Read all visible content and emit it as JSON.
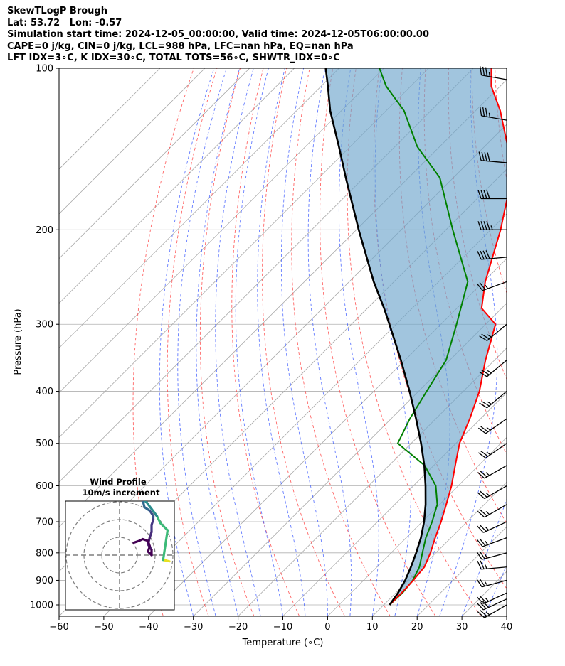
{
  "header": {
    "line1": "SkewTLogP Brough",
    "line2": "Lat: 53.72   Lon: -0.57",
    "line3": "Simulation start time: 2024-12-05_00:00:00, Valid time: 2024-12-05T06:00:00.00",
    "line4": "CAPE=0 j/kg, CIN=0 j/kg, LCL=988 hPa, LFC=nan hPa, EQ=nan hPa",
    "line5": "LFT IDX=3∘C, K IDX=30∘C, TOTAL TOTS=56∘C, SHWTR_IDX=0∘C"
  },
  "chart_data": {
    "type": "skewt-logp",
    "xlabel": "Temperature (∘C)",
    "ylabel": "Pressure (hPa)",
    "xlim": [
      -60,
      40
    ],
    "ylim": [
      1050,
      100
    ],
    "x_ticks": [
      -60,
      -50,
      -40,
      -30,
      -20,
      -10,
      0,
      10,
      20,
      30,
      40
    ],
    "x_tick_labels": [
      "−60",
      "−50",
      "−40",
      "−30",
      "−20",
      "−10",
      "0",
      "10",
      "20",
      "30",
      "40"
    ],
    "y_ticks": [
      1000,
      900,
      800,
      700,
      600,
      500,
      400,
      300,
      200,
      100
    ],
    "y_tick_labels": [
      "1000",
      "900",
      "800",
      "700",
      "600",
      "500",
      "400",
      "300",
      "200",
      "100"
    ],
    "y_scale": "log",
    "grid": true,
    "colors": {
      "temperature": "#ff0000",
      "dewpoint": "#008000",
      "parcel": "#000000",
      "cape_fill": "#6fa6cc",
      "dry_adiabat": "#ff0000",
      "moist_adiabat": "#0000ff",
      "mixing_ratio": "#808080",
      "wind_barb": "#000000"
    },
    "series": [
      {
        "name": "",
        "role": "temperature",
        "points": [
          [
            11.3,
            1000
          ],
          [
            11.3,
            950
          ],
          [
            11.1,
            900
          ],
          [
            10.6,
            850
          ],
          [
            8.8,
            800
          ],
          [
            6.5,
            750
          ],
          [
            4.2,
            700
          ],
          [
            1.5,
            650
          ],
          [
            -1.5,
            600
          ],
          [
            -5.2,
            550
          ],
          [
            -9.2,
            500
          ],
          [
            -12.4,
            450
          ],
          [
            -16.4,
            400
          ],
          [
            -22.0,
            350
          ],
          [
            -27.8,
            300
          ],
          [
            -34.5,
            280
          ],
          [
            -39.6,
            250
          ],
          [
            -47.8,
            200
          ],
          [
            -57.0,
            160
          ],
          [
            -64.8,
            140
          ],
          [
            -74.5,
            120
          ],
          [
            -82.0,
            108
          ],
          [
            -86.0,
            100
          ]
        ]
      },
      {
        "name": "",
        "role": "dewpoint",
        "points": [
          [
            11.3,
            1000
          ],
          [
            11.5,
            950
          ],
          [
            11.0,
            900
          ],
          [
            9.5,
            850
          ],
          [
            7.0,
            800
          ],
          [
            4.4,
            750
          ],
          [
            2.2,
            700
          ],
          [
            -0.5,
            650
          ],
          [
            -5.0,
            600
          ],
          [
            -12.0,
            550
          ],
          [
            -23.0,
            500
          ],
          [
            -25.8,
            450
          ],
          [
            -28.2,
            400
          ],
          [
            -30.8,
            350
          ],
          [
            -36.5,
            300
          ],
          [
            -43.5,
            250
          ],
          [
            -58.5,
            200
          ],
          [
            -73.0,
            160
          ],
          [
            -85.0,
            140
          ],
          [
            -96.0,
            120
          ],
          [
            -105.5,
            108
          ],
          [
            -111.0,
            100
          ]
        ]
      },
      {
        "name": "",
        "role": "parcel",
        "points": [
          [
            11.3,
            1000
          ],
          [
            10.5,
            950
          ],
          [
            9.3,
            900
          ],
          [
            7.6,
            850
          ],
          [
            5.6,
            800
          ],
          [
            3.3,
            750
          ],
          [
            0.4,
            700
          ],
          [
            -3.1,
            650
          ],
          [
            -7.3,
            600
          ],
          [
            -12.1,
            550
          ],
          [
            -17.8,
            500
          ],
          [
            -24.4,
            450
          ],
          [
            -32.0,
            400
          ],
          [
            -40.9,
            350
          ],
          [
            -51.5,
            300
          ],
          [
            -56.3,
            280
          ],
          [
            -64.5,
            250
          ],
          [
            -79.5,
            200
          ],
          [
            -94.0,
            160
          ],
          [
            -102.5,
            140
          ],
          [
            -112.5,
            120
          ],
          [
            -118.5,
            108
          ],
          [
            -123.0,
            100
          ]
        ]
      }
    ],
    "wind_barbs": [
      {
        "pressure": 1000,
        "speed_kt": 25,
        "dir_deg": 240
      },
      {
        "pressure": 975,
        "speed_kt": 30,
        "dir_deg": 245
      },
      {
        "pressure": 950,
        "speed_kt": 25,
        "dir_deg": 245
      },
      {
        "pressure": 900,
        "speed_kt": 25,
        "dir_deg": 255
      },
      {
        "pressure": 850,
        "speed_kt": 25,
        "dir_deg": 265
      },
      {
        "pressure": 800,
        "speed_kt": 25,
        "dir_deg": 255
      },
      {
        "pressure": 750,
        "speed_kt": 25,
        "dir_deg": 250
      },
      {
        "pressure": 700,
        "speed_kt": 25,
        "dir_deg": 245
      },
      {
        "pressure": 650,
        "speed_kt": 25,
        "dir_deg": 240
      },
      {
        "pressure": 600,
        "speed_kt": 25,
        "dir_deg": 240
      },
      {
        "pressure": 550,
        "speed_kt": 25,
        "dir_deg": 240
      },
      {
        "pressure": 500,
        "speed_kt": 25,
        "dir_deg": 235
      },
      {
        "pressure": 450,
        "speed_kt": 25,
        "dir_deg": 235
      },
      {
        "pressure": 400,
        "speed_kt": 25,
        "dir_deg": 230
      },
      {
        "pressure": 350,
        "speed_kt": 25,
        "dir_deg": 230
      },
      {
        "pressure": 300,
        "speed_kt": 25,
        "dir_deg": 230
      },
      {
        "pressure": 250,
        "speed_kt": 25,
        "dir_deg": 250
      },
      {
        "pressure": 225,
        "speed_kt": 40,
        "dir_deg": 265
      },
      {
        "pressure": 200,
        "speed_kt": 45,
        "dir_deg": 270
      },
      {
        "pressure": 175,
        "speed_kt": 40,
        "dir_deg": 270
      },
      {
        "pressure": 150,
        "speed_kt": 40,
        "dir_deg": 275
      },
      {
        "pressure": 125,
        "speed_kt": 35,
        "dir_deg": 280
      },
      {
        "pressure": 105,
        "speed_kt": 35,
        "dir_deg": 280
      }
    ],
    "inset": {
      "title": "Wind Profile",
      "subtitle": "10m/s increment",
      "rings": [
        10,
        20,
        30
      ],
      "hodograph": [
        {
          "u": 28,
          "v": -3.5,
          "color": "#e8e020"
        },
        {
          "u": 26,
          "v": -3,
          "color": "#e8e020"
        },
        {
          "u": 24.5,
          "v": -2.7,
          "color": "#e8e020"
        },
        {
          "u": 27,
          "v": 14,
          "color": "#3cba78"
        },
        {
          "u": 23,
          "v": 18,
          "color": "#3cba78"
        },
        {
          "u": 21,
          "v": 22,
          "color": "#3cba78"
        },
        {
          "u": 18,
          "v": 26,
          "color": "#2a8c8c"
        },
        {
          "u": 15,
          "v": 30,
          "color": "#2a8c8c"
        },
        {
          "u": 13,
          "v": 31,
          "color": "#2a8c8c"
        },
        {
          "u": 14,
          "v": 27,
          "color": "#31688e"
        },
        {
          "u": 17,
          "v": 25,
          "color": "#31688e"
        },
        {
          "u": 19,
          "v": 22,
          "color": "#3b528b"
        },
        {
          "u": 19,
          "v": 20,
          "color": "#3b528b"
        },
        {
          "u": 18,
          "v": 17,
          "color": "#443983"
        },
        {
          "u": 18,
          "v": 13,
          "color": "#443983"
        },
        {
          "u": 17,
          "v": 10,
          "color": "#472c7a"
        },
        {
          "u": 16,
          "v": 6,
          "color": "#481d6f"
        },
        {
          "u": 18,
          "v": 3,
          "color": "#481d6f"
        },
        {
          "u": 18,
          "v": 0,
          "color": "#440154"
        },
        {
          "u": 16,
          "v": 2,
          "color": "#440154"
        },
        {
          "u": 17,
          "v": 5,
          "color": "#440154"
        },
        {
          "u": 16,
          "v": 8,
          "color": "#440154"
        },
        {
          "u": 13,
          "v": 9,
          "color": "#440154"
        },
        {
          "u": 11,
          "v": 8,
          "color": "#440154"
        },
        {
          "u": 8,
          "v": 7,
          "color": "#440154"
        }
      ]
    }
  }
}
